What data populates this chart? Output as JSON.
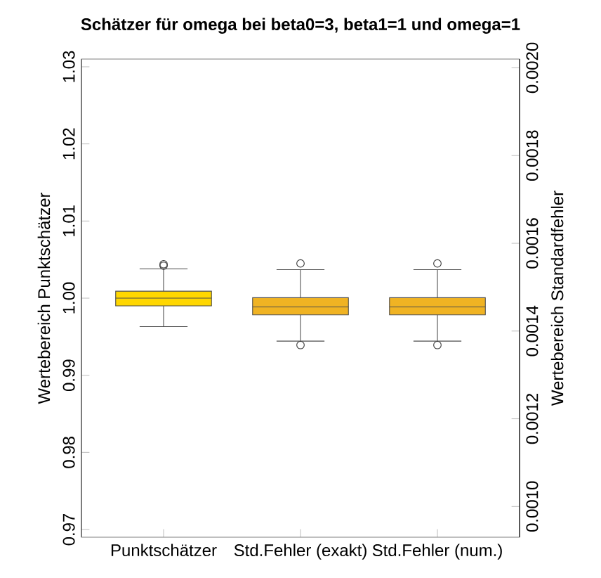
{
  "chart_data": {
    "type": "box",
    "title": "Schätzer für omega bei beta0=3, beta1=1 und omega=1",
    "ylabel": "Wertebereich Punktschätzer",
    "y2label": "Wertebereich Standardfehler",
    "categories": [
      "Punktschätzer",
      "Std.Fehler (exakt)",
      "Std.Fehler (num.)"
    ],
    "ylim": [
      0.969,
      1.031
    ],
    "yticks": [
      0.97,
      0.98,
      0.99,
      {
        "value": 1.0,
        "label": "1.00"
      },
      1.01,
      1.02,
      1.03
    ],
    "y2lim": [
      0.00093,
      0.00202
    ],
    "y2ticks": [
      {
        "value": 0.001,
        "label": "0.0010"
      },
      0.0012,
      0.0014,
      0.0016,
      0.0018,
      {
        "value": 0.002,
        "label": "0.0020"
      }
    ],
    "series": [
      {
        "color": "#ffd700",
        "axis": "y",
        "boxes": [
          {
            "low": 0.9963,
            "q1": 0.999,
            "median": 1.0,
            "q3": 1.0009,
            "high": 1.0038,
            "outliers": [
              1.0042,
              1.0044
            ]
          },
          null,
          null
        ]
      },
      {
        "color": "#f0b323",
        "axis": "y2",
        "boxes": [
          null,
          {
            "low": 0.001377,
            "q1": 0.001437,
            "median": 0.001455,
            "q3": 0.001476,
            "high": 0.00154,
            "outliers": [
              0.001554,
              0.001368
            ]
          },
          {
            "low": 0.001377,
            "q1": 0.001437,
            "median": 0.001455,
            "q3": 0.001476,
            "high": 0.00154,
            "outliers": [
              0.001554,
              0.001368
            ]
          }
        ]
      }
    ]
  }
}
